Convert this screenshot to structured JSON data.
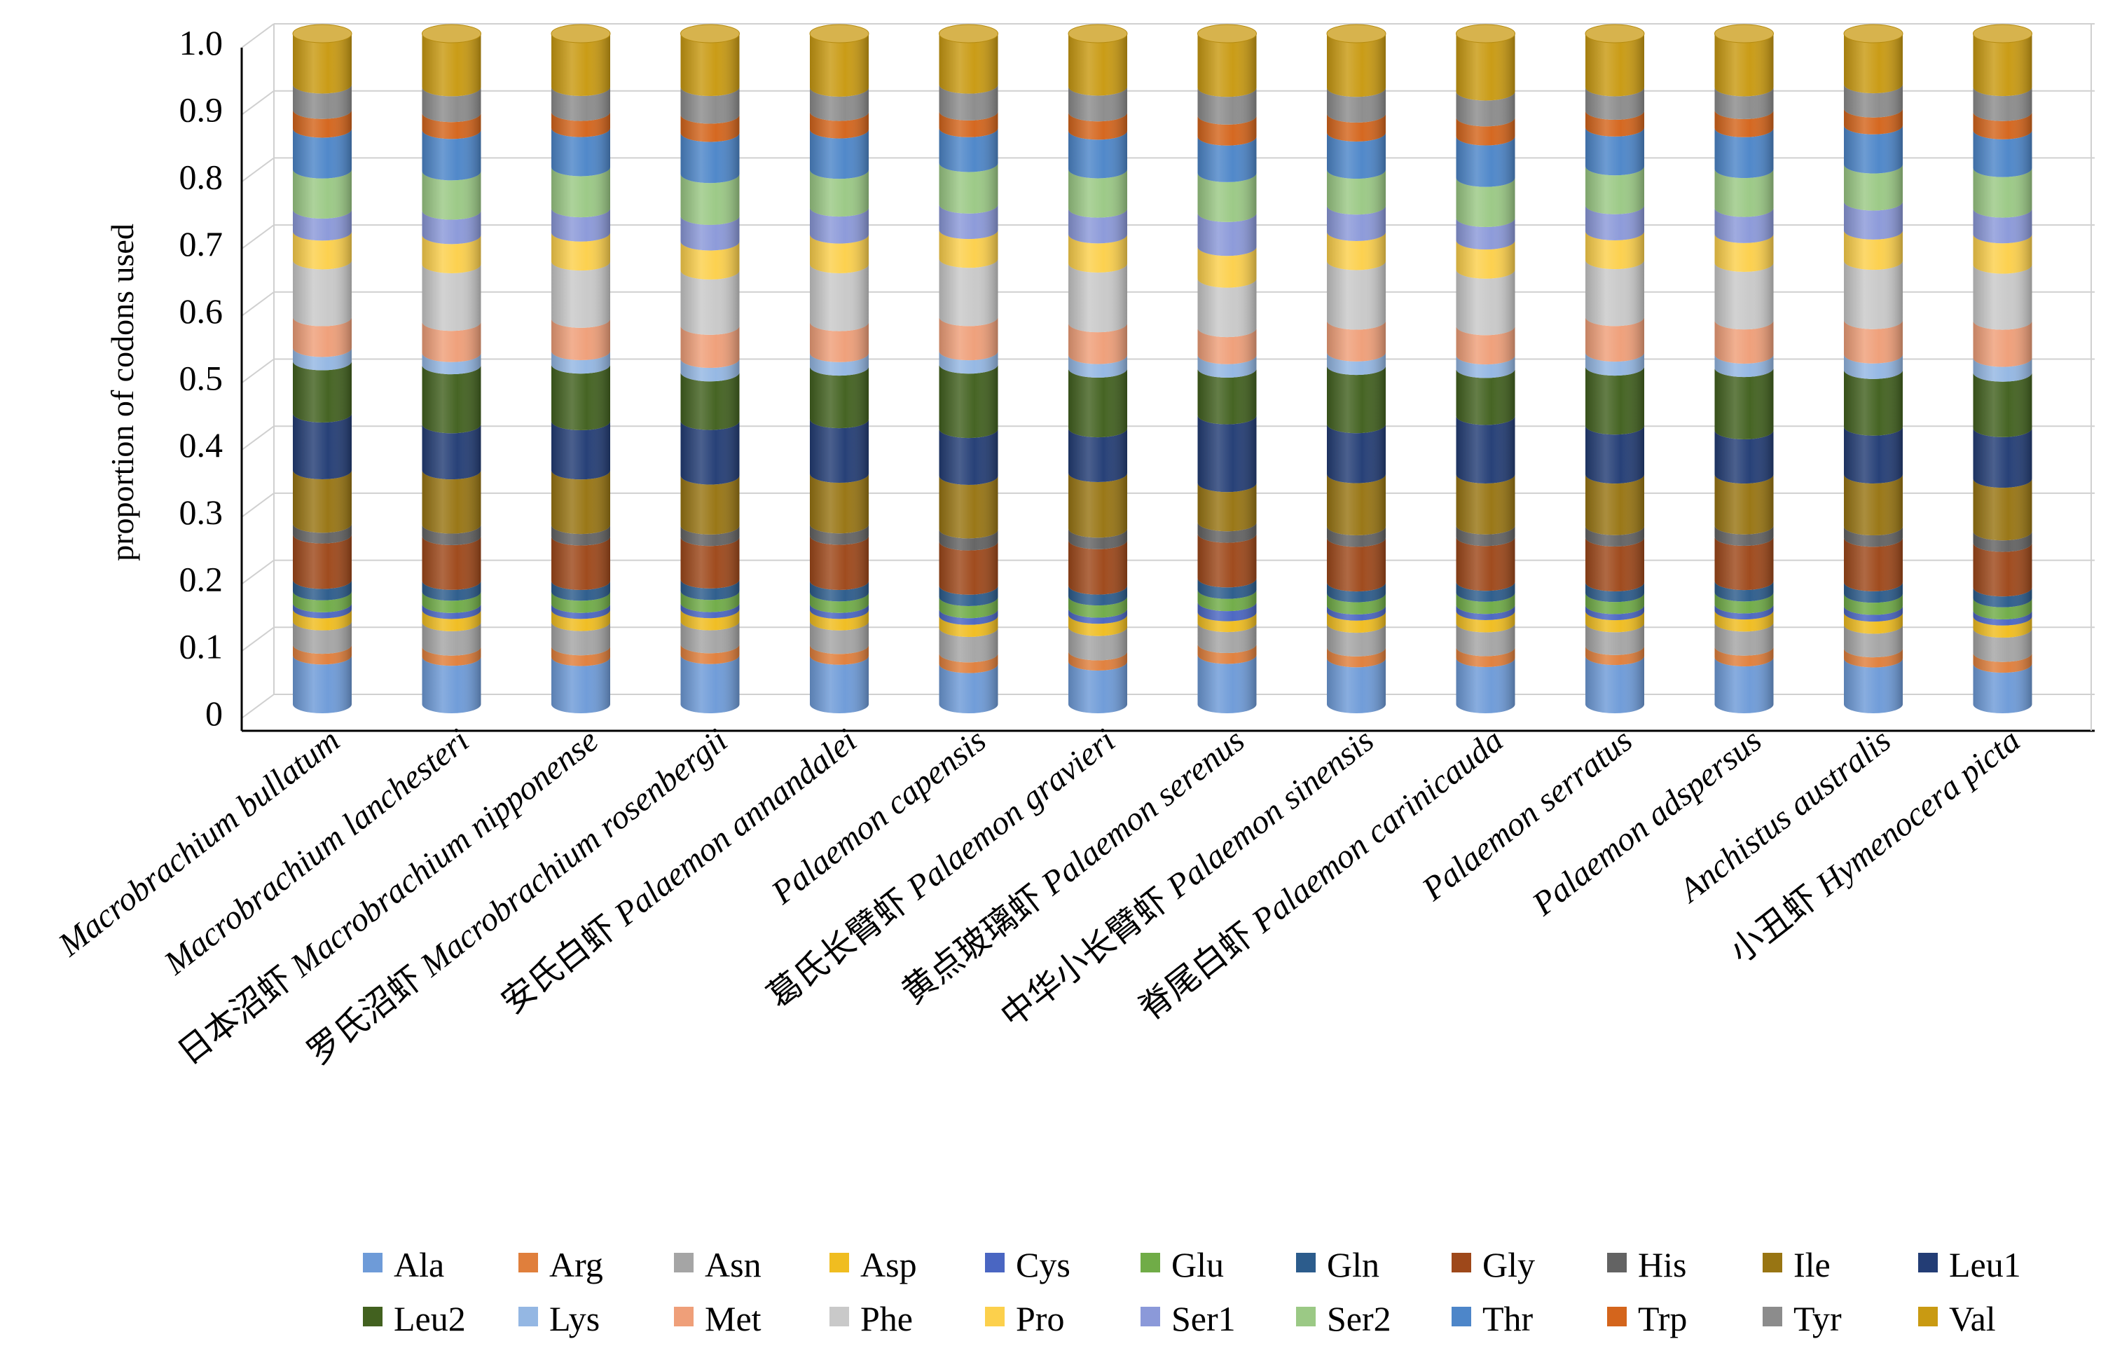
{
  "chart_data": {
    "type": "bar",
    "stacked": true,
    "style": "3d-cylinder",
    "title": "",
    "xlabel": "",
    "ylabel": "proportion of codons used",
    "ylim": [
      0,
      1.0
    ],
    "y_ticks": [
      "0",
      "0.1",
      "0.2",
      "0.3",
      "0.4",
      "0.5",
      "0.6",
      "0.7",
      "0.8",
      "0.9",
      "1.0"
    ],
    "grid": true,
    "legend_position": "bottom",
    "categories": [
      "Macrobrachium bullatum",
      "Macrobrachium lanchesteri",
      "日本沼虾 Macrobrachium nipponense",
      "罗氏沼虾 Macrobrachium rosenbergii",
      "安氏白虾 Palaemon annandalei",
      "Palaemon capensis",
      "葛氏长臂虾 Palaemon gravieri",
      "黄点玻璃虾 Palaemon serenus",
      "中华小长臂虾 Palaemon sinensis",
      "脊尾白虾 Palaemon carinicauda",
      "Palaemon serratus",
      "Palaemon adspersus",
      "Anchistus australis",
      "小丑虾 Hymenocera picta"
    ],
    "categories_chinese": [
      "",
      "",
      "日本沼虾",
      "罗氏沼虾",
      "安氏白虾",
      "",
      "葛氏长臂虾",
      "黄点玻璃虾",
      "中华小长臂虾",
      "脊尾白虾",
      "",
      "",
      "",
      "小丑虾"
    ],
    "categories_latin": [
      "Macrobrachium bullatum",
      "Macrobrachium lanchesteri",
      "Macrobrachium nipponense",
      "Macrobrachium rosenbergii",
      "Palaemon annandalei",
      "Palaemon capensis",
      "Palaemon gravieri",
      "Palaemon serenus",
      "Palaemon sinensis",
      "Palaemon carinicauda",
      "Palaemon serratus",
      "Palaemon adspersus",
      "Anchistus australis",
      "Hymenocera picta"
    ],
    "series": [
      {
        "name": "Ala",
        "color": "#6e9bd8",
        "values": [
          0.073,
          0.07,
          0.07,
          0.073,
          0.072,
          0.06,
          0.063,
          0.073,
          0.068,
          0.068,
          0.072,
          0.07,
          0.068,
          0.06
        ]
      },
      {
        "name": "Arg",
        "color": "#e07f3c",
        "values": [
          0.016,
          0.015,
          0.016,
          0.016,
          0.016,
          0.016,
          0.015,
          0.016,
          0.016,
          0.016,
          0.015,
          0.016,
          0.015,
          0.016
        ]
      },
      {
        "name": "Asn",
        "color": "#a5a5a5",
        "values": [
          0.035,
          0.036,
          0.036,
          0.034,
          0.035,
          0.038,
          0.036,
          0.031,
          0.035,
          0.035,
          0.034,
          0.036,
          0.035,
          0.036
        ]
      },
      {
        "name": "Asp",
        "color": "#f0bd20",
        "values": [
          0.018,
          0.018,
          0.018,
          0.018,
          0.017,
          0.018,
          0.018,
          0.016,
          0.018,
          0.018,
          0.018,
          0.018,
          0.018,
          0.018
        ]
      },
      {
        "name": "Cys",
        "color": "#4a66c2",
        "values": [
          0.009,
          0.009,
          0.009,
          0.009,
          0.009,
          0.01,
          0.009,
          0.015,
          0.009,
          0.009,
          0.009,
          0.009,
          0.01,
          0.009
        ]
      },
      {
        "name": "Glu",
        "color": "#70ac47",
        "values": [
          0.018,
          0.018,
          0.018,
          0.018,
          0.017,
          0.018,
          0.018,
          0.018,
          0.018,
          0.018,
          0.018,
          0.018,
          0.018,
          0.018
        ]
      },
      {
        "name": "Gln",
        "color": "#2c5c8c",
        "values": [
          0.017,
          0.016,
          0.016,
          0.017,
          0.017,
          0.017,
          0.016,
          0.017,
          0.016,
          0.016,
          0.016,
          0.017,
          0.017,
          0.016
        ]
      },
      {
        "name": "Gly",
        "color": "#9e481a",
        "values": [
          0.068,
          0.066,
          0.066,
          0.063,
          0.067,
          0.066,
          0.067,
          0.066,
          0.066,
          0.066,
          0.067,
          0.066,
          0.066,
          0.066
        ]
      },
      {
        "name": "His",
        "color": "#636363",
        "values": [
          0.016,
          0.017,
          0.017,
          0.017,
          0.017,
          0.018,
          0.017,
          0.017,
          0.017,
          0.017,
          0.017,
          0.017,
          0.017,
          0.017
        ]
      },
      {
        "name": "Ile",
        "color": "#987513",
        "values": [
          0.08,
          0.08,
          0.081,
          0.074,
          0.075,
          0.08,
          0.082,
          0.058,
          0.077,
          0.075,
          0.077,
          0.076,
          0.077,
          0.078
        ]
      },
      {
        "name": "Leu1",
        "color": "#233d75",
        "values": [
          0.085,
          0.068,
          0.073,
          0.081,
          0.081,
          0.07,
          0.066,
          0.1,
          0.074,
          0.086,
          0.073,
          0.066,
          0.071,
          0.075
        ]
      },
      {
        "name": "Leu2",
        "color": "#42611f",
        "values": [
          0.078,
          0.087,
          0.084,
          0.072,
          0.078,
          0.096,
          0.088,
          0.069,
          0.086,
          0.069,
          0.088,
          0.093,
          0.084,
          0.082
        ]
      },
      {
        "name": "Lys",
        "color": "#94b7e3",
        "values": [
          0.02,
          0.018,
          0.02,
          0.02,
          0.02,
          0.02,
          0.02,
          0.02,
          0.02,
          0.02,
          0.021,
          0.02,
          0.023,
          0.022
        ]
      },
      {
        "name": "Met",
        "color": "#ef9f79",
        "values": [
          0.046,
          0.046,
          0.048,
          0.049,
          0.046,
          0.051,
          0.047,
          0.04,
          0.047,
          0.043,
          0.053,
          0.051,
          0.051,
          0.055
        ]
      },
      {
        "name": "Phe",
        "color": "#c9c9c9",
        "values": [
          0.085,
          0.085,
          0.085,
          0.082,
          0.086,
          0.087,
          0.088,
          0.073,
          0.088,
          0.083,
          0.085,
          0.086,
          0.088,
          0.083
        ]
      },
      {
        "name": "Pro",
        "color": "#fcd04c",
        "values": [
          0.043,
          0.043,
          0.043,
          0.043,
          0.044,
          0.043,
          0.043,
          0.047,
          0.043,
          0.043,
          0.043,
          0.043,
          0.045,
          0.045
        ]
      },
      {
        "name": "Ser1",
        "color": "#8b99d9",
        "values": [
          0.033,
          0.036,
          0.036,
          0.038,
          0.04,
          0.038,
          0.038,
          0.05,
          0.039,
          0.033,
          0.039,
          0.039,
          0.043,
          0.038
        ]
      },
      {
        "name": "Ser2",
        "color": "#9bc985",
        "values": [
          0.06,
          0.058,
          0.061,
          0.062,
          0.056,
          0.062,
          0.058,
          0.059,
          0.053,
          0.059,
          0.058,
          0.058,
          0.055,
          0.06
        ]
      },
      {
        "name": "Thr",
        "color": "#4d86c9",
        "values": [
          0.061,
          0.061,
          0.058,
          0.061,
          0.06,
          0.052,
          0.057,
          0.054,
          0.055,
          0.061,
          0.058,
          0.061,
          0.058,
          0.056
        ]
      },
      {
        "name": "Trp",
        "color": "#d4651c",
        "values": [
          0.028,
          0.025,
          0.024,
          0.027,
          0.026,
          0.025,
          0.027,
          0.031,
          0.028,
          0.028,
          0.025,
          0.027,
          0.025,
          0.027
        ]
      },
      {
        "name": "Tyr",
        "color": "#8c8c8c",
        "values": [
          0.038,
          0.038,
          0.037,
          0.041,
          0.036,
          0.04,
          0.038,
          0.041,
          0.038,
          0.038,
          0.035,
          0.034,
          0.036,
          0.037
        ]
      },
      {
        "name": "Val",
        "color": "#c99a12",
        "values": [
          0.076,
          0.079,
          0.079,
          0.079,
          0.08,
          0.076,
          0.078,
          0.08,
          0.08,
          0.085,
          0.08,
          0.08,
          0.075,
          0.079
        ]
      }
    ]
  }
}
